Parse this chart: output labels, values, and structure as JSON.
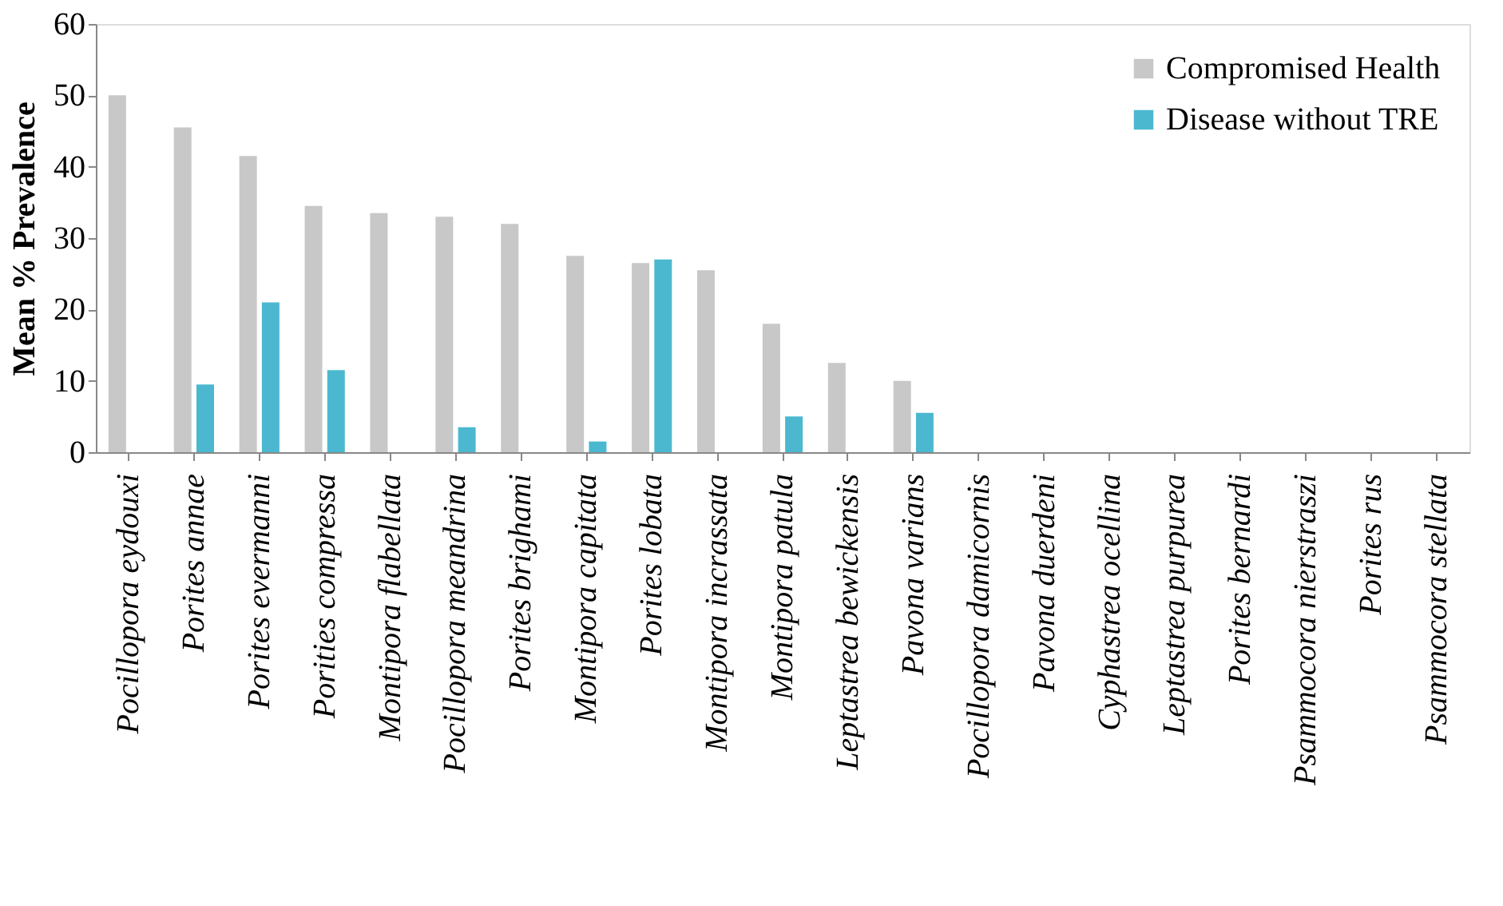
{
  "chart_data": {
    "type": "bar",
    "ylabel": "Mean % Prevalence",
    "categories": [
      "Pocillopora eydouxi",
      "Porites annae",
      "Porites evermanni",
      "Porities compressa",
      "Montipora flabellata",
      "Pocillopora meandrina",
      "Porites brighami",
      "Montipora capitata",
      "Porites lobata",
      "Montipora incrassata",
      "Montipora patula",
      "Leptastrea bewickensis",
      "Pavona varians",
      "Pocillopora damicornis",
      "Pavona duerdeni",
      "Cyphastrea ocellina",
      "Leptastrea purpurea",
      "Porites bernardi",
      "Psammocora nierstraszi",
      "Porites rus",
      "Psammocora stellata"
    ],
    "series": [
      {
        "name": "Compromised Health",
        "color": "#c8c8c8",
        "values": [
          50,
          45.5,
          41.5,
          34.5,
          33.5,
          33,
          32,
          27.5,
          26.5,
          25.5,
          18,
          12.5,
          10,
          0,
          0,
          0,
          0,
          0,
          0,
          0,
          0
        ]
      },
      {
        "name": "Disease without TRE",
        "color": "#4bb8d0",
        "values": [
          0,
          9.5,
          21,
          11.5,
          0,
          3.5,
          0,
          1.5,
          27,
          0,
          5,
          0,
          5.5,
          0,
          0,
          0,
          0,
          0,
          0,
          0,
          0
        ]
      }
    ],
    "ylim": [
      0,
      60
    ],
    "yticks": [
      0,
      10,
      20,
      30,
      40,
      50,
      60
    ],
    "grid": false,
    "legend": "top right"
  }
}
